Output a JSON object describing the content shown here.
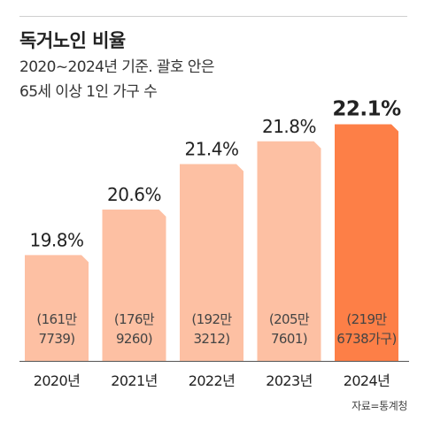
{
  "header": {
    "title": "독거노인 비율",
    "subtitle_line1": "2020~2024년 기준. 괄호 안은",
    "subtitle_line2": "65세 이상 1인 가구 수"
  },
  "source": "자료=통계청",
  "colors": {
    "bar": "#fdc0a3",
    "bar_highlight": "#fd7f47",
    "baseline": "#555555",
    "text": "#222222"
  },
  "chart_data": {
    "type": "bar",
    "categories": [
      "2020년",
      "2021년",
      "2022년",
      "2023년",
      "2024년"
    ],
    "values": [
      19.8,
      20.6,
      21.4,
      21.8,
      22.1
    ],
    "value_labels": [
      "19.8%",
      "20.6%",
      "21.4%",
      "21.8%",
      "22.1%"
    ],
    "annotations": [
      [
        "(161만",
        "7739)"
      ],
      [
        "(176만",
        "9260)"
      ],
      [
        "(192만",
        "3212)"
      ],
      [
        "(205만",
        "7601)"
      ],
      [
        "(219만",
        "6738가구)"
      ]
    ],
    "highlight_index": 4,
    "title": "독거노인 비율",
    "ylim": [
      0,
      22.1
    ]
  }
}
